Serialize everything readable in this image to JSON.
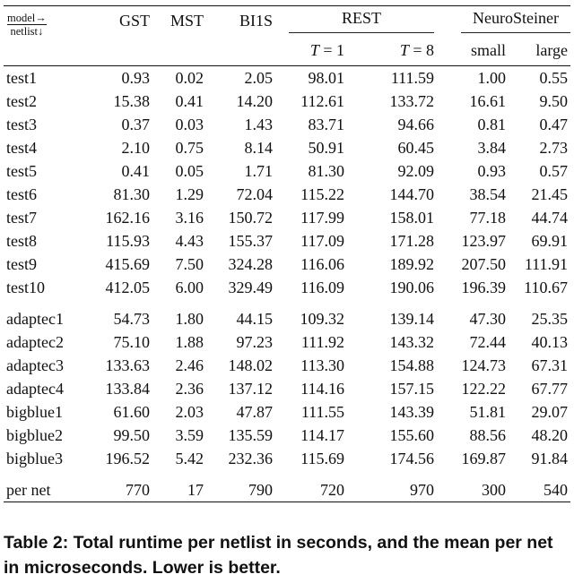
{
  "header": {
    "corner_top": "model→",
    "corner_bottom": "netlist↓",
    "columns": [
      "GST",
      "MST",
      "BI1S"
    ],
    "rest_group": "REST",
    "neuro_group": "NeuroSteiner",
    "rest_sub": [
      {
        "var": "T",
        "val": " = 1"
      },
      {
        "var": "T",
        "val": " = 8"
      }
    ],
    "neuro_sub": [
      "small",
      "large"
    ]
  },
  "rows_tests": [
    {
      "name": "test1",
      "values": [
        "0.93",
        "0.02",
        "2.05",
        "98.01",
        "111.59",
        "1.00",
        "0.55"
      ]
    },
    {
      "name": "test2",
      "values": [
        "15.38",
        "0.41",
        "14.20",
        "112.61",
        "133.72",
        "16.61",
        "9.50"
      ]
    },
    {
      "name": "test3",
      "values": [
        "0.37",
        "0.03",
        "1.43",
        "83.71",
        "94.66",
        "0.81",
        "0.47"
      ]
    },
    {
      "name": "test4",
      "values": [
        "2.10",
        "0.75",
        "8.14",
        "50.91",
        "60.45",
        "3.84",
        "2.73"
      ]
    },
    {
      "name": "test5",
      "values": [
        "0.41",
        "0.05",
        "1.71",
        "81.30",
        "92.09",
        "0.93",
        "0.57"
      ]
    },
    {
      "name": "test6",
      "values": [
        "81.30",
        "1.29",
        "72.04",
        "115.22",
        "144.70",
        "38.54",
        "21.45"
      ]
    },
    {
      "name": "test7",
      "values": [
        "162.16",
        "3.16",
        "150.72",
        "117.99",
        "158.01",
        "77.18",
        "44.74"
      ]
    },
    {
      "name": "test8",
      "values": [
        "115.93",
        "4.43",
        "155.37",
        "117.09",
        "171.28",
        "123.97",
        "69.91"
      ]
    },
    {
      "name": "test9",
      "values": [
        "415.69",
        "7.50",
        "324.28",
        "116.06",
        "189.92",
        "207.50",
        "111.91"
      ]
    },
    {
      "name": "test10",
      "values": [
        "412.05",
        "6.00",
        "329.49",
        "116.09",
        "190.06",
        "196.39",
        "110.67"
      ]
    }
  ],
  "rows_bench": [
    {
      "name": "adaptec1",
      "values": [
        "54.73",
        "1.80",
        "44.15",
        "109.32",
        "139.14",
        "47.30",
        "25.35"
      ]
    },
    {
      "name": "adaptec2",
      "values": [
        "75.10",
        "1.88",
        "97.23",
        "111.92",
        "143.32",
        "72.44",
        "40.13"
      ]
    },
    {
      "name": "adaptec3",
      "values": [
        "133.63",
        "2.46",
        "148.02",
        "113.30",
        "154.88",
        "124.73",
        "67.31"
      ]
    },
    {
      "name": "adaptec4",
      "values": [
        "133.84",
        "2.36",
        "137.12",
        "114.16",
        "157.15",
        "122.22",
        "67.77"
      ]
    },
    {
      "name": "bigblue1",
      "values": [
        "61.60",
        "2.03",
        "47.87",
        "111.55",
        "143.39",
        "51.81",
        "29.07"
      ]
    },
    {
      "name": "bigblue2",
      "values": [
        "99.50",
        "3.59",
        "135.59",
        "114.17",
        "155.60",
        "88.56",
        "48.20"
      ]
    },
    {
      "name": "bigblue3",
      "values": [
        "196.52",
        "5.42",
        "232.36",
        "115.69",
        "174.56",
        "169.87",
        "91.84"
      ]
    }
  ],
  "row_pernet": {
    "name": "per net",
    "values": [
      "770",
      "17",
      "790",
      "720",
      "970",
      "300",
      "540"
    ]
  },
  "caption": "Table 2: Total runtime per netlist in seconds, and the mean per net in microseconds. Lower is better."
}
